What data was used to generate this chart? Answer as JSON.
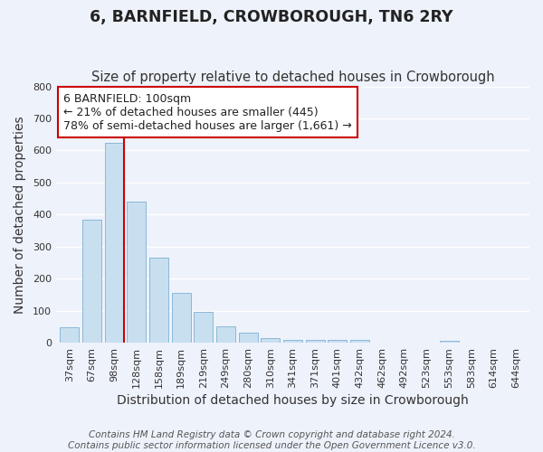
{
  "title": "6, BARNFIELD, CROWBOROUGH, TN6 2RY",
  "subtitle": "Size of property relative to detached houses in Crowborough",
  "xlabel": "Distribution of detached houses by size in Crowborough",
  "ylabel": "Number of detached properties",
  "bar_labels": [
    "37sqm",
    "67sqm",
    "98sqm",
    "128sqm",
    "158sqm",
    "189sqm",
    "219sqm",
    "249sqm",
    "280sqm",
    "310sqm",
    "341sqm",
    "371sqm",
    "401sqm",
    "432sqm",
    "462sqm",
    "492sqm",
    "523sqm",
    "553sqm",
    "583sqm",
    "614sqm",
    "644sqm"
  ],
  "bar_values": [
    48,
    385,
    625,
    440,
    265,
    155,
    95,
    50,
    30,
    15,
    10,
    10,
    10,
    10,
    0,
    0,
    0,
    5,
    0,
    0,
    0
  ],
  "bar_color": "#c8dff0",
  "bar_edge_color": "#8ab8d8",
  "vline_x": 2,
  "vline_color": "#cc0000",
  "annotation_text": "6 BARNFIELD: 100sqm\n← 21% of detached houses are smaller (445)\n78% of semi-detached houses are larger (1,661) →",
  "annotation_box_color": "#ffffff",
  "annotation_box_edge": "#cc0000",
  "ylim": [
    0,
    800
  ],
  "yticks": [
    0,
    100,
    200,
    300,
    400,
    500,
    600,
    700,
    800
  ],
  "footer_text": "Contains HM Land Registry data © Crown copyright and database right 2024.\nContains public sector information licensed under the Open Government Licence v3.0.",
  "background_color": "#eef2fb",
  "grid_color": "#ffffff",
  "title_fontsize": 12.5,
  "subtitle_fontsize": 10.5,
  "axis_label_fontsize": 10,
  "tick_fontsize": 8,
  "footer_fontsize": 7.5,
  "annotation_fontsize": 9
}
